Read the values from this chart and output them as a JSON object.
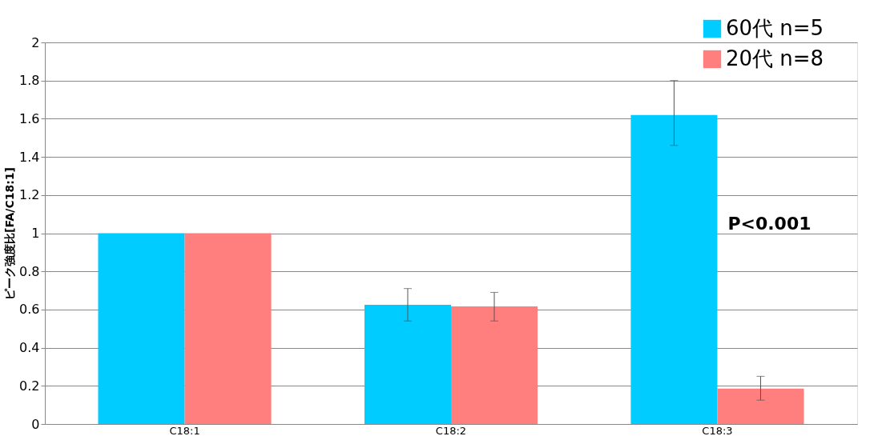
{
  "chart_data": {
    "type": "bar",
    "ylabel": "ピーク強度比[FA/C18:1]",
    "categories": [
      "C18:1",
      "C18:2",
      "C18:3"
    ],
    "series": [
      {
        "name": "60代 n=5",
        "color": "#00ccff",
        "values": [
          1.0,
          0.625,
          1.62
        ],
        "errors": [
          null,
          [
            0.54,
            0.71
          ],
          [
            1.46,
            1.8
          ]
        ]
      },
      {
        "name": "20代 n=8",
        "color": "#ff7f7f",
        "values": [
          1.0,
          0.616,
          0.186
        ],
        "errors": [
          null,
          [
            0.54,
            0.69
          ],
          [
            0.125,
            0.25
          ]
        ]
      }
    ],
    "ylim": [
      0,
      2
    ],
    "yticks": [
      0,
      0.2,
      0.4,
      0.6,
      0.8,
      1,
      1.2,
      1.4,
      1.6,
      1.8,
      2
    ],
    "grid": "y",
    "legend": "top right",
    "annotations": [
      {
        "text": "P<0.001",
        "x": "C18:3",
        "y": 1.05
      }
    ]
  }
}
